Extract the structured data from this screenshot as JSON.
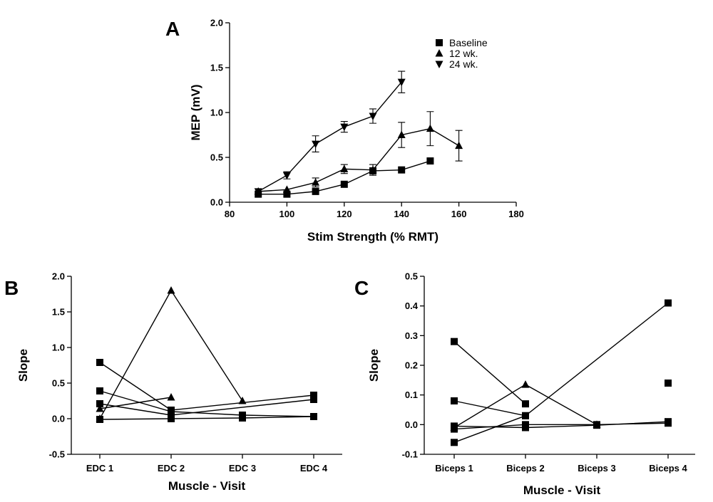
{
  "chart_data": [
    {
      "panel": "A",
      "type": "line",
      "xlabel": "Stim Strength (% RMT)",
      "ylabel": "MEP (mV)",
      "xlim": [
        80,
        180
      ],
      "ylim": [
        0.0,
        2.0
      ],
      "xticks": [
        80,
        100,
        120,
        140,
        160,
        180
      ],
      "yticks": [
        "0.0",
        "0.5",
        "1.0",
        "1.5",
        "2.0"
      ],
      "legend_position": "top-right",
      "series": [
        {
          "name": "Baseline",
          "marker": "square",
          "x": [
            90,
            100,
            110,
            120,
            130,
            140,
            150
          ],
          "y": [
            0.09,
            0.09,
            0.12,
            0.2,
            0.35,
            0.36,
            0.46
          ],
          "err": [
            0.0,
            0.0,
            0.0,
            0.0,
            0.0,
            0.0,
            0.0
          ]
        },
        {
          "name": "12 wk.",
          "marker": "triangle-up",
          "x": [
            90,
            100,
            110,
            120,
            130,
            140,
            150,
            160
          ],
          "y": [
            0.12,
            0.14,
            0.22,
            0.37,
            0.36,
            0.75,
            0.82,
            0.63
          ],
          "err": [
            0.0,
            0.0,
            0.05,
            0.05,
            0.06,
            0.14,
            0.19,
            0.17
          ]
        },
        {
          "name": "24 wk.",
          "marker": "triangle-down",
          "x": [
            90,
            100,
            110,
            120,
            130,
            140
          ],
          "y": [
            0.12,
            0.3,
            0.65,
            0.84,
            0.96,
            1.34
          ],
          "err": [
            0.0,
            0.04,
            0.09,
            0.06,
            0.08,
            0.12
          ]
        }
      ]
    },
    {
      "panel": "B",
      "type": "line",
      "xlabel": "Muscle - Visit",
      "ylabel": "Slope",
      "categories": [
        "EDC 1",
        "EDC 2",
        "EDC 3",
        "EDC 4"
      ],
      "ylim": [
        -0.5,
        2.0
      ],
      "yticks": [
        "-0.5",
        "0.0",
        "0.5",
        "1.0",
        "1.5",
        "2.0"
      ],
      "series": [
        {
          "marker": "triangle-up",
          "x": [
            1,
            2,
            3
          ],
          "y": [
            0.0,
            1.8,
            0.25
          ]
        },
        {
          "marker": "square",
          "x": [
            1,
            2,
            4
          ],
          "y": [
            0.79,
            0.12,
            0.33
          ]
        },
        {
          "marker": "square",
          "x": [
            1,
            2,
            3,
            4
          ],
          "y": [
            0.39,
            0.1,
            0.05,
            0.03
          ]
        },
        {
          "marker": "triangle-up",
          "x": [
            1,
            2
          ],
          "y": [
            0.14,
            0.3
          ]
        },
        {
          "marker": "square",
          "x": [
            1,
            2,
            4
          ],
          "y": [
            0.21,
            0.05,
            0.27
          ]
        },
        {
          "marker": "square",
          "x": [
            1,
            2,
            3,
            4
          ],
          "y": [
            -0.01,
            0.0,
            0.01,
            0.03
          ]
        }
      ]
    },
    {
      "panel": "C",
      "type": "line",
      "xlabel": "Muscle - Visit",
      "ylabel": "Slope",
      "categories": [
        "Biceps 1",
        "Biceps 2",
        "Biceps 3",
        "Biceps 4"
      ],
      "ylim": [
        -0.1,
        0.5
      ],
      "yticks": [
        "-0.1",
        "0.0",
        "0.1",
        "0.2",
        "0.3",
        "0.4",
        "0.5"
      ],
      "series": [
        {
          "marker": "square",
          "x": [
            1,
            2
          ],
          "y": [
            0.28,
            0.07
          ]
        },
        {
          "marker": "square",
          "x": [
            1,
            2
          ],
          "y": [
            0.08,
            0.03
          ]
        },
        {
          "marker": "triangle-up",
          "x": [
            1,
            2,
            3
          ],
          "y": [
            -0.01,
            0.135,
            0.0
          ]
        },
        {
          "marker": "square",
          "x": [
            1,
            2,
            4
          ],
          "y": [
            -0.06,
            0.03,
            0.41
          ]
        },
        {
          "marker": "square",
          "x": [
            1,
            2,
            3,
            4
          ],
          "y": [
            -0.005,
            -0.01,
            -0.002,
            0.01
          ]
        },
        {
          "marker": "square",
          "x": [
            1,
            2,
            3,
            4
          ],
          "y": [
            -0.015,
            0.0,
            0.0,
            0.005
          ]
        },
        {
          "marker": "square",
          "x": [
            4
          ],
          "y": [
            0.14
          ]
        }
      ]
    }
  ]
}
